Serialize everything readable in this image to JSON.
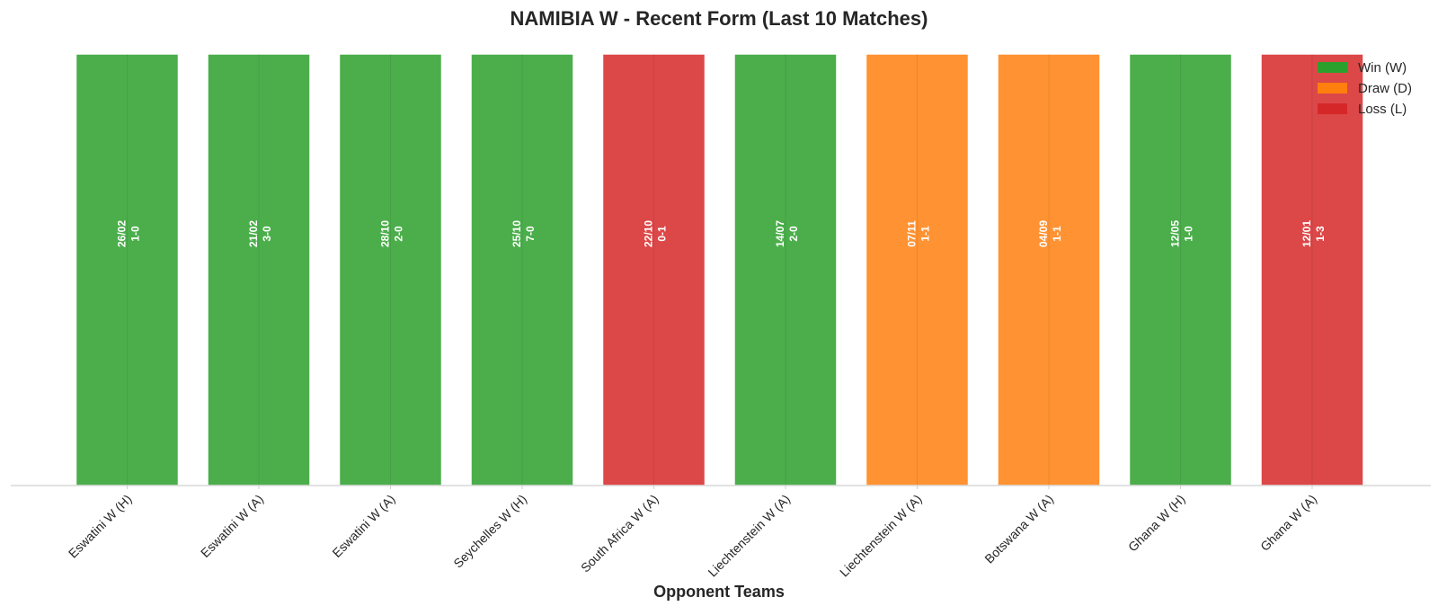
{
  "chart_data": {
    "type": "bar",
    "title": "NAMIBIA W - Recent Form (Last 10 Matches)",
    "xlabel": "Opponent Teams",
    "ylabel": "",
    "ylim": [
      0,
      1
    ],
    "grid": true,
    "legend_position": "top-right",
    "categories": [
      "Eswatini W (H)",
      "Eswatini W (A)",
      "Eswatini W (A)",
      "Seychelles W (H)",
      "South Africa W (A)",
      "Liechtenstein W (A)",
      "Liechtenstein W (A)",
      "Botswana W (A)",
      "Ghana W (H)",
      "Ghana W (A)"
    ],
    "values": [
      1,
      1,
      1,
      1,
      1,
      1,
      1,
      1,
      1,
      1
    ],
    "results": [
      "W",
      "W",
      "W",
      "W",
      "L",
      "W",
      "D",
      "D",
      "W",
      "L"
    ],
    "dates": [
      "26/02",
      "21/02",
      "28/10",
      "25/10",
      "22/10",
      "14/07",
      "07/11",
      "04/09",
      "12/05",
      "12/01"
    ],
    "scores": [
      "1-0",
      "3-0",
      "2-0",
      "7-0",
      "0-1",
      "2-0",
      "1-1",
      "1-1",
      "1-0",
      "1-3"
    ],
    "legend": [
      {
        "key": "W",
        "label": "Win (W)",
        "color": "#2ca02c"
      },
      {
        "key": "D",
        "label": "Draw (D)",
        "color": "#ff7f0e"
      },
      {
        "key": "L",
        "label": "Loss (L)",
        "color": "#d62728"
      }
    ]
  }
}
